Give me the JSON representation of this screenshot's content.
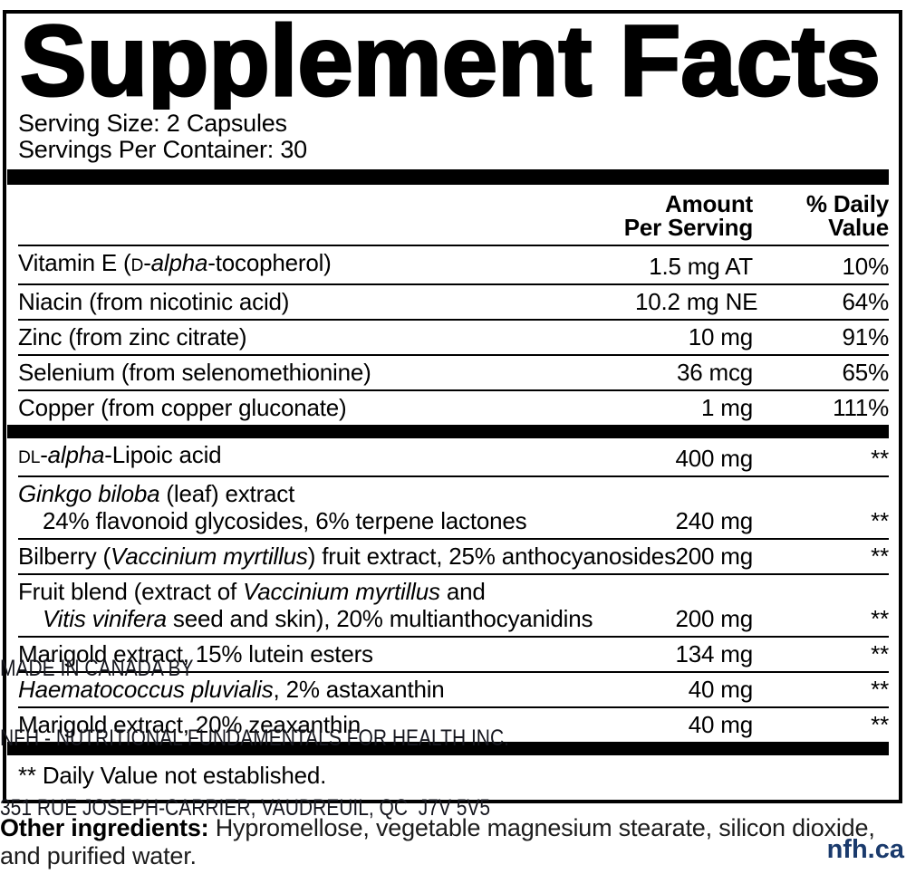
{
  "label": {
    "title": "Supplement Facts",
    "serving_size": "Serving Size: 2 Capsules",
    "servings_per_container": "Servings Per Container: 30",
    "columns": {
      "amount_line1": "Amount",
      "amount_line2": "Per Serving",
      "dv_line1": "% Daily",
      "dv_line2": "Value"
    },
    "sections": [
      {
        "rows": [
          {
            "name": [
              {
                "t": "Vitamin E ("
              },
              {
                "s": "sc",
                "t": "D"
              },
              {
                "t": "-"
              },
              {
                "s": "it",
                "t": "alpha"
              },
              {
                "t": "-tocopherol)"
              }
            ],
            "amount": "1.5 mg AT",
            "dv": "10%"
          },
          {
            "name": [
              {
                "t": "Niacin (from nicotinic acid)"
              }
            ],
            "amount": "10.2 mg NE",
            "dv": "64%"
          },
          {
            "name": [
              {
                "t": "Zinc (from zinc citrate)"
              }
            ],
            "amount": "10 mg",
            "dv": "91%"
          },
          {
            "name": [
              {
                "t": "Selenium (from selenomethionine)"
              }
            ],
            "amount": "36 mcg",
            "dv": "65%"
          },
          {
            "name": [
              {
                "t": "Copper (from copper gluconate)"
              }
            ],
            "amount": "1 mg",
            "dv": "111%"
          }
        ]
      },
      {
        "rows": [
          {
            "name": [
              {
                "s": "sc",
                "t": "DL"
              },
              {
                "t": "-"
              },
              {
                "s": "it",
                "t": "alpha"
              },
              {
                "t": "-Lipoic acid"
              }
            ],
            "amount": "400 mg",
            "dv": "**"
          },
          {
            "name": [
              {
                "s": "it",
                "t": "Ginkgo biloba"
              },
              {
                "t": " (leaf) extract"
              }
            ],
            "name2": [
              {
                "t": "24% flavonoid glycosides, 6% terpene lactones"
              }
            ],
            "amount": "240 mg",
            "dv": "**"
          },
          {
            "name": [
              {
                "t": "Bilberry ("
              },
              {
                "s": "it",
                "t": "Vaccinium myrtillus"
              },
              {
                "t": ") fruit extract, 25% anthocyanosides"
              }
            ],
            "amount": "200 mg",
            "dv": "**"
          },
          {
            "name": [
              {
                "t": "Fruit blend (extract of "
              },
              {
                "s": "it",
                "t": "Vaccinium myrtillus"
              },
              {
                "t": " and"
              }
            ],
            "name2": [
              {
                "s": "it",
                "t": "Vitis vinifera"
              },
              {
                "t": " seed and skin), 20% multianthocyanidins"
              }
            ],
            "amount": "200 mg",
            "dv": "**"
          },
          {
            "name": [
              {
                "t": "Marigold extract, 15% lutein esters"
              }
            ],
            "amount": "134 mg",
            "dv": "**"
          },
          {
            "name": [
              {
                "s": "it",
                "t": "Haematococcus pluvialis"
              },
              {
                "t": ", 2% astaxanthin"
              }
            ],
            "amount": "40 mg",
            "dv": "**"
          },
          {
            "name": [
              {
                "t": "Marigold extract, 20% zeaxanthin"
              }
            ],
            "amount": "40 mg",
            "dv": "**"
          }
        ]
      }
    ],
    "footnote": "** Daily Value not established."
  },
  "other_ingredients": {
    "label": "Other ingredients:",
    "text": " Hypromellose, vegetable magnesium stearate, silicon dioxide, and purified water."
  },
  "footer": {
    "made_in": "MADE IN CANADA BY",
    "company": "NFH - NUTRITIONAL FUNDAMENTALS FOR HEALTH INC.",
    "address": "351 RUE JOSEPH-CARRIER, VAUDREUIL, QC  J7V 5V5",
    "website": "nfh.ca"
  },
  "colors": {
    "website_blue": "#1a3a6c",
    "text_black": "#000000"
  }
}
